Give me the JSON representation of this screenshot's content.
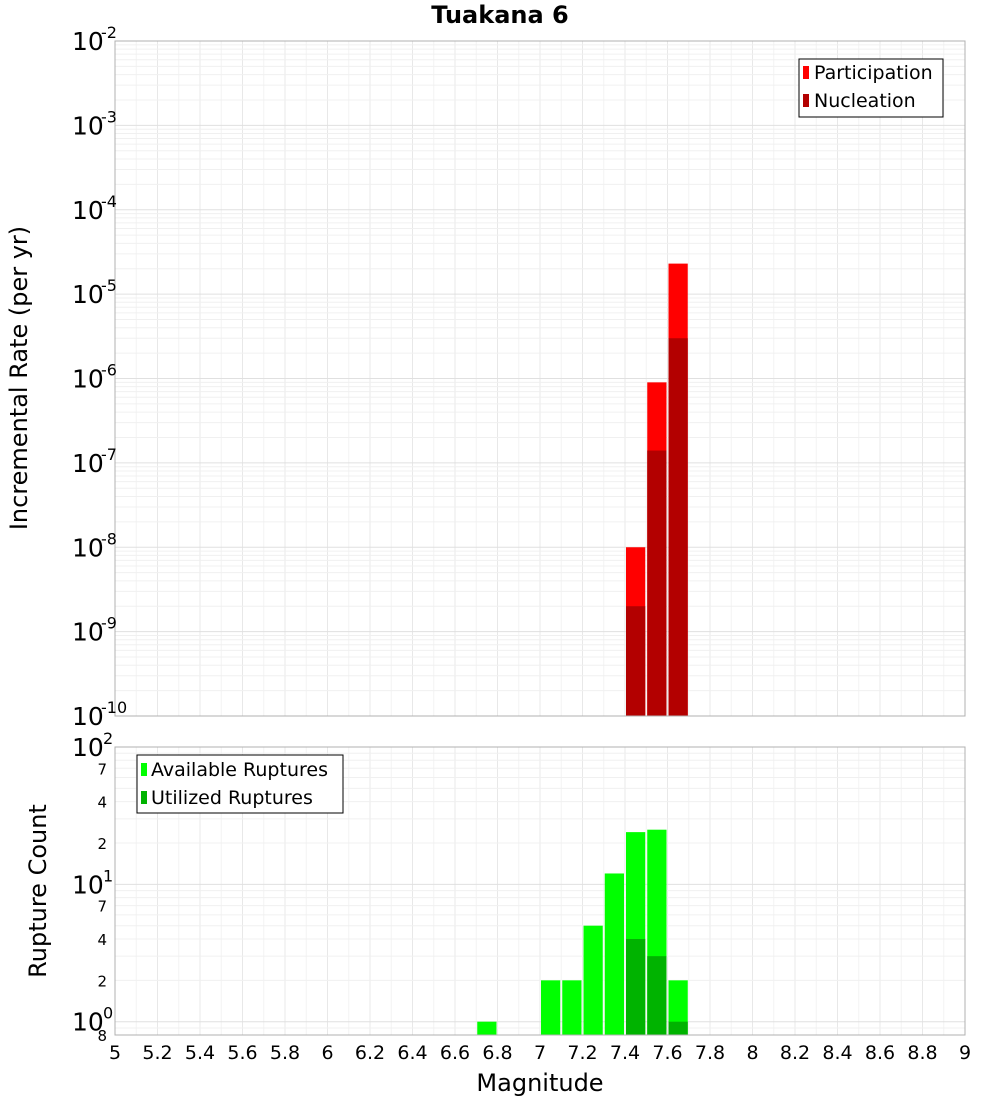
{
  "chart_data": [
    {
      "type": "bar",
      "title": "Tuakana 6",
      "ylabel": "Incremental Rate (per yr)",
      "xlabel": "",
      "yscale": "log",
      "ylim": [
        1e-10,
        0.01
      ],
      "xlim": [
        5,
        9
      ],
      "grid": true,
      "legend_placement": "top-right",
      "y_tick_labels": [
        {
          "base": "10",
          "exp": "-10"
        },
        {
          "base": "10",
          "exp": "-9"
        },
        {
          "base": "10",
          "exp": "-8"
        },
        {
          "base": "10",
          "exp": "-7"
        },
        {
          "base": "10",
          "exp": "-6"
        },
        {
          "base": "10",
          "exp": "-5"
        },
        {
          "base": "10",
          "exp": "-4"
        },
        {
          "base": "10",
          "exp": "-3"
        },
        {
          "base": "10",
          "exp": "-2"
        }
      ],
      "x": [
        7.45,
        7.55,
        7.65
      ],
      "series": [
        {
          "name": "Participation",
          "color": "#ff0000",
          "values": [
            1e-08,
            9e-07,
            2.3e-05
          ]
        },
        {
          "name": "Nucleation",
          "color": "#b30000",
          "values": [
            2e-09,
            1.4e-07,
            3e-06
          ]
        }
      ]
    },
    {
      "type": "bar",
      "title": "",
      "ylabel": "Rupture Count",
      "xlabel": "Magnitude",
      "yscale": "log",
      "ylim": [
        0.8,
        100
      ],
      "xlim": [
        5,
        9
      ],
      "grid": true,
      "legend_placement": "top-left",
      "y_tick_labels": [
        {
          "base": "10",
          "exp": "0",
          "at": 1
        },
        {
          "base": "10",
          "exp": "1",
          "at": 10
        },
        {
          "base": "10",
          "exp": "2",
          "at": 100
        }
      ],
      "y_minor_labels": [
        {
          "text": "8",
          "at": 0.8
        },
        {
          "text": "2",
          "at": 2
        },
        {
          "text": "4",
          "at": 4
        },
        {
          "text": "7",
          "at": 7
        },
        {
          "text": "2",
          "at": 20
        },
        {
          "text": "4",
          "at": 40
        },
        {
          "text": "7",
          "at": 70
        }
      ],
      "x_ticks": [
        5,
        5.2,
        5.4,
        5.6,
        5.8,
        6,
        6.2,
        6.4,
        6.6,
        6.8,
        7,
        7.2,
        7.4,
        7.6,
        7.8,
        8,
        8.2,
        8.4,
        8.6,
        8.8,
        9
      ],
      "x_tick_labels": [
        "5",
        "5.2",
        "5.4",
        "5.6",
        "5.8",
        "6",
        "6.2",
        "6.4",
        "6.6",
        "6.8",
        "7",
        "7.2",
        "7.4",
        "7.6",
        "7.8",
        "8",
        "8.2",
        "8.4",
        "8.6",
        "8.8",
        "9"
      ],
      "x": [
        6.75,
        7.05,
        7.15,
        7.25,
        7.35,
        7.45,
        7.55,
        7.65
      ],
      "series": [
        {
          "name": "Available Ruptures",
          "color": "#00ff00",
          "values": [
            1,
            2,
            2,
            5,
            12,
            24,
            25,
            2
          ]
        },
        {
          "name": "Utilized Ruptures",
          "color": "#00b300",
          "values": [
            null,
            null,
            null,
            null,
            null,
            4,
            3,
            1
          ]
        }
      ]
    }
  ]
}
